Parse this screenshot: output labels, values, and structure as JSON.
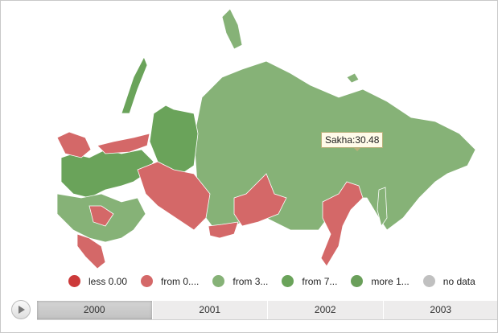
{
  "tooltip": {
    "text": "Sakha:30.48"
  },
  "legend": [
    {
      "label": "less 0.00",
      "color": "#cc3a3a"
    },
    {
      "label": "from 0....",
      "color": "#d46868"
    },
    {
      "label": "from 3...",
      "color": "#86b277"
    },
    {
      "label": "from 7...",
      "color": "#6aa35a"
    },
    {
      "label": "more 1...",
      "color": "#6a9f5a"
    },
    {
      "label": "no data",
      "color": "#c0c0c0"
    }
  ],
  "timeline": {
    "years": [
      "2000",
      "2001",
      "2002",
      "2003"
    ],
    "selected": "2000"
  },
  "colors": {
    "border": "#ffffff"
  }
}
